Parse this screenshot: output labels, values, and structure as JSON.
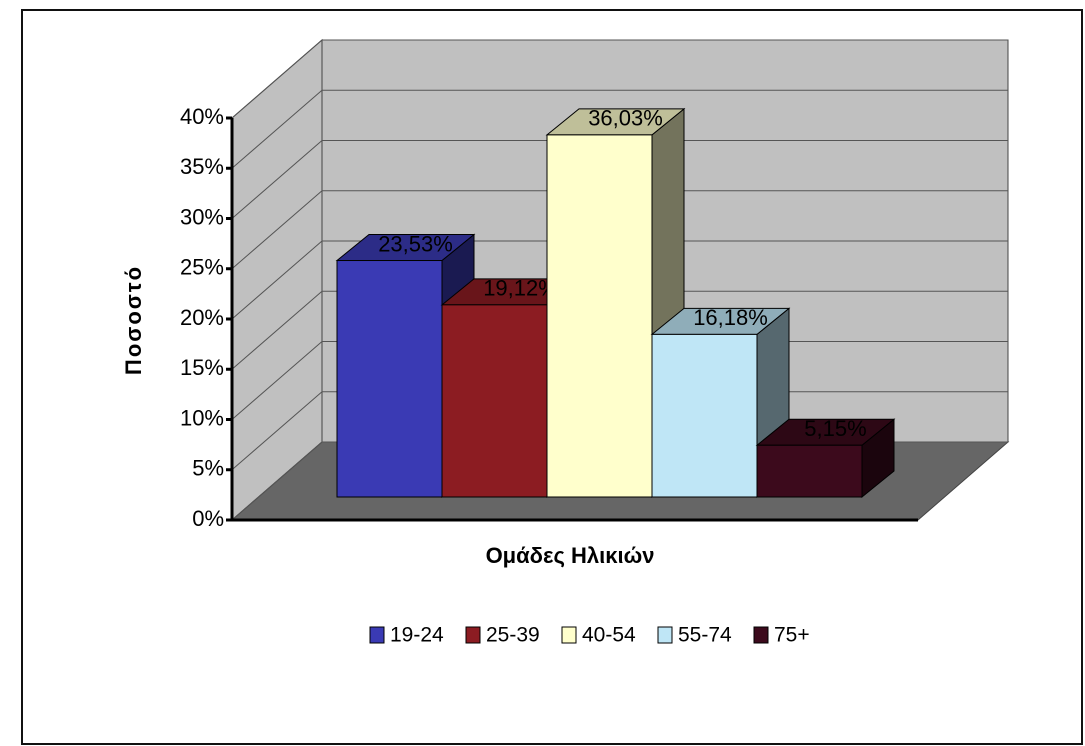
{
  "chart_data": {
    "type": "bar3d",
    "ylabel": "Ποσοστό",
    "xlabel": "Ομάδες Ηλικιών",
    "ylim": [
      0,
      40
    ],
    "yticks": [
      {
        "value": 0,
        "label": "0%"
      },
      {
        "value": 5,
        "label": "5%"
      },
      {
        "value": 10,
        "label": "10%"
      },
      {
        "value": 15,
        "label": "15%"
      },
      {
        "value": 20,
        "label": "20%"
      },
      {
        "value": 25,
        "label": "25%"
      },
      {
        "value": 30,
        "label": "30%"
      },
      {
        "value": 35,
        "label": "35%"
      },
      {
        "value": 40,
        "label": "40%"
      }
    ],
    "grid": true,
    "legend": "bottom",
    "series": [
      {
        "name": "19-24",
        "color": "#3a3ab4",
        "values": [
          23.53
        ],
        "value_labels": [
          "23,53%"
        ]
      },
      {
        "name": "25-39",
        "color": "#8c1c22",
        "values": [
          19.12
        ],
        "value_labels": [
          "19,12%"
        ]
      },
      {
        "name": "40-54",
        "color": "#ffffcc",
        "values": [
          36.03
        ],
        "value_labels": [
          "36,03%"
        ]
      },
      {
        "name": "55-74",
        "color": "#bfe6f6",
        "values": [
          16.18
        ],
        "value_labels": [
          "16,18%"
        ]
      },
      {
        "name": "75+",
        "color": "#3c0a1c",
        "values": [
          5.15
        ],
        "value_labels": [
          "5,15%"
        ]
      }
    ]
  }
}
